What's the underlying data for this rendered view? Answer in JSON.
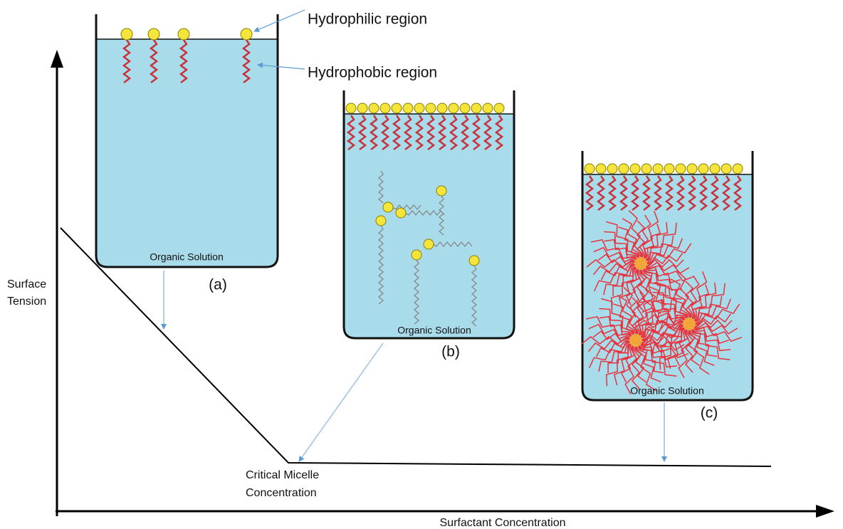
{
  "annotations": {
    "hydrophilic": "Hydrophilic region",
    "hydrophobic": "Hydrophobic region"
  },
  "beakers": [
    {
      "solution": "Organic Solution",
      "label": "(a)"
    },
    {
      "solution": "Organic Solution",
      "label": "(b)"
    },
    {
      "solution": "Organic Solution",
      "label": "(c)"
    }
  ],
  "axes": {
    "y_label": [
      "Surface",
      "Tension"
    ],
    "x_label": "Surfactant Concentration"
  },
  "cmc_label": [
    "Critical Micelle",
    "Concentration"
  ]
}
